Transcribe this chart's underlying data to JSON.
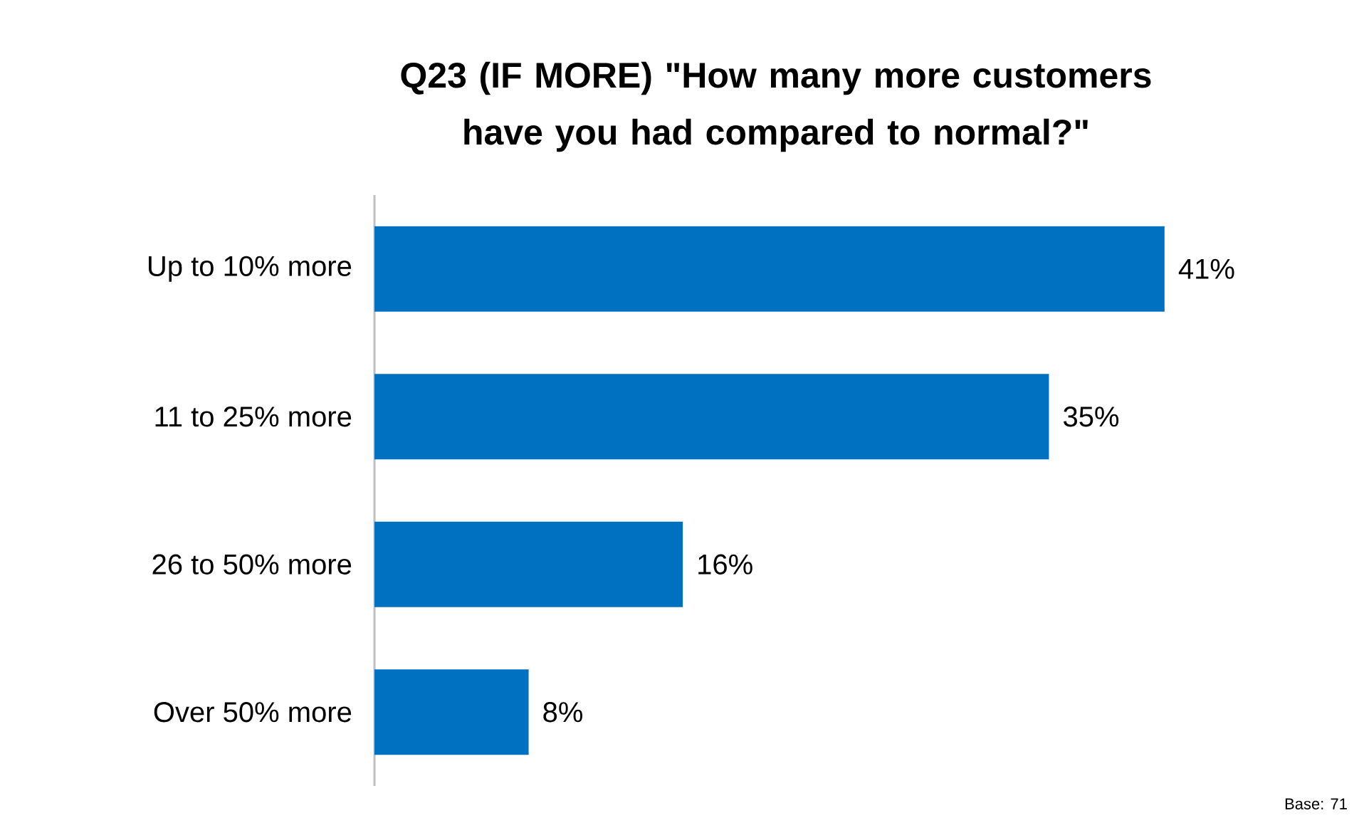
{
  "chart_data": {
    "type": "bar",
    "orientation": "horizontal",
    "title": "Q23 (IF MORE) \"How many more customers have you had compared to normal?\"",
    "categories": [
      "Up to 10% more",
      "11 to 25% more",
      "26 to 50% more",
      "Over 50% more"
    ],
    "values": [
      41,
      35,
      16,
      8
    ],
    "value_labels": [
      "41%",
      "35%",
      "16%",
      "8%"
    ],
    "color": "#0070c0",
    "annotations": [
      "Base: 71"
    ]
  }
}
